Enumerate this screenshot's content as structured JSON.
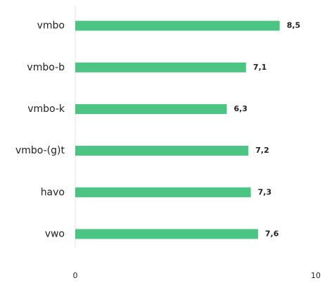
{
  "chart_data": {
    "type": "bar",
    "orientation": "horizontal",
    "categories": [
      "vmbo",
      "vmbo-b",
      "vmbo-k",
      "vmbo-(g)t",
      "havo",
      "vwo"
    ],
    "values": [
      8.5,
      7.1,
      6.3,
      7.2,
      7.3,
      7.6
    ],
    "value_labels": [
      "8,5",
      "7,1",
      "6,3",
      "7,2",
      "7,3",
      "7,6"
    ],
    "color": "#4cc483",
    "xlim": [
      0,
      10
    ],
    "xticks": [
      0,
      10
    ]
  }
}
